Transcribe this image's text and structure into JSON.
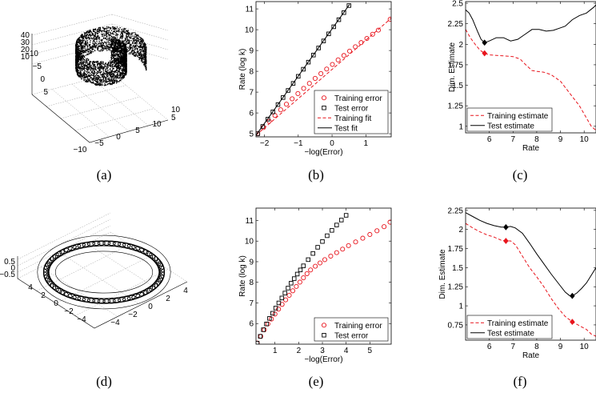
{
  "captions": [
    "(a)",
    "(b)",
    "(c)",
    "(d)",
    "(e)",
    "(f)"
  ],
  "chart_data": [
    {
      "id": "a",
      "type": "scatter",
      "kind": "3d-swiss-roll",
      "z_ticks": [
        "40",
        "30",
        "20",
        "10"
      ],
      "y_ticks": [
        "-10",
        "-5",
        "0",
        "5"
      ],
      "x_ticks": [
        "-10",
        "-5",
        "0",
        "5",
        "10"
      ],
      "right_ticks": [
        "10",
        "5"
      ],
      "point_color": "#000000"
    },
    {
      "id": "b",
      "type": "scatter",
      "xlabel": "−log(Error)",
      "ylabel": "Rate (log k)",
      "xlim": [
        -2.25,
        1.75
      ],
      "ylim": [
        4.85,
        11.35
      ],
      "xticks": [
        -2,
        -1,
        0,
        1
      ],
      "yticks": [
        5,
        6,
        7,
        8,
        9,
        10,
        11
      ],
      "legend": "bottom-right",
      "series": [
        {
          "name": "Training error",
          "marker": "circle",
          "color": "#e8141c",
          "x": [
            -2.2,
            -2.03,
            -1.86,
            -1.69,
            -1.52,
            -1.35,
            -1.18,
            -1.01,
            -0.84,
            -0.67,
            -0.5,
            -0.33,
            -0.16,
            0.01,
            0.18,
            0.35,
            0.52,
            0.69,
            0.86,
            1.03,
            1.2,
            1.37,
            1.72
          ],
          "y": [
            5.0,
            5.3,
            5.6,
            5.88,
            6.15,
            6.42,
            6.68,
            6.93,
            7.18,
            7.42,
            7.66,
            7.89,
            8.11,
            8.33,
            8.55,
            8.76,
            8.97,
            9.18,
            9.38,
            9.58,
            9.78,
            9.98,
            10.5
          ]
        },
        {
          "name": "Test error",
          "marker": "square",
          "color": "#000000",
          "x": [
            -2.2,
            -2.05,
            -1.9,
            -1.75,
            -1.6,
            -1.45,
            -1.3,
            -1.15,
            -1.0,
            -0.85,
            -0.7,
            -0.55,
            -0.4,
            -0.25,
            -0.1,
            0.05,
            0.2,
            0.35,
            0.5
          ],
          "y": [
            5.0,
            5.35,
            5.7,
            6.05,
            6.4,
            6.74,
            7.08,
            7.42,
            7.76,
            8.1,
            8.44,
            8.78,
            9.12,
            9.46,
            9.8,
            10.14,
            10.48,
            10.82,
            11.16
          ]
        },
        {
          "name": "Training fit",
          "line": "dashed",
          "color": "#e8141c",
          "x": [
            -2.25,
            1.75
          ],
          "y": [
            4.93,
            10.55
          ]
        },
        {
          "name": "Test fit",
          "line": "solid",
          "color": "#000000",
          "x": [
            -2.25,
            0.52
          ],
          "y": [
            4.93,
            11.22
          ]
        }
      ]
    },
    {
      "id": "c",
      "type": "line",
      "xlabel": "Rate",
      "ylabel": "Dim. Estimate",
      "xlim": [
        5.0,
        10.5
      ],
      "ylim": [
        0.92,
        2.52
      ],
      "xticks": [
        6,
        7,
        8,
        9,
        10
      ],
      "yticks": [
        "1",
        "1.25",
        "1.5",
        "1.75",
        "2",
        "2.25",
        "2.5"
      ],
      "legend": "bottom-left",
      "series": [
        {
          "name": "Training estimate",
          "line": "dashed",
          "color": "#e8141c",
          "x": [
            5.0,
            5.2,
            5.4,
            5.6,
            5.8,
            6.0,
            6.5,
            7.0,
            7.3,
            7.5,
            7.8,
            8.0,
            8.3,
            8.6,
            9.0,
            9.4,
            9.8,
            10.1,
            10.3,
            10.5
          ],
          "y": [
            2.18,
            2.08,
            2.0,
            1.93,
            1.89,
            1.87,
            1.86,
            1.85,
            1.82,
            1.76,
            1.68,
            1.67,
            1.66,
            1.63,
            1.55,
            1.4,
            1.25,
            1.1,
            1.0,
            0.95
          ],
          "highlight": {
            "x": 5.8,
            "y": 1.89
          }
        },
        {
          "name": "Test estimate",
          "line": "solid",
          "color": "#000000",
          "x": [
            5.0,
            5.15,
            5.3,
            5.5,
            5.65,
            5.8,
            6.0,
            6.3,
            6.6,
            6.9,
            7.2,
            7.5,
            7.8,
            8.1,
            8.4,
            8.7,
            9.0,
            9.2,
            9.5,
            9.8,
            10.1,
            10.4,
            10.5
          ],
          "y": [
            2.42,
            2.38,
            2.3,
            2.16,
            2.06,
            2.02,
            2.04,
            2.08,
            2.08,
            2.04,
            2.06,
            2.12,
            2.18,
            2.18,
            2.16,
            2.17,
            2.2,
            2.22,
            2.3,
            2.35,
            2.38,
            2.45,
            2.48
          ],
          "highlight": {
            "x": 5.8,
            "y": 2.02
          }
        }
      ]
    },
    {
      "id": "d",
      "type": "scatter",
      "kind": "3d-torus",
      "z_ticks": [
        "0.5",
        "0",
        "−0.5"
      ],
      "left_ticks": [
        "4",
        "2",
        "0",
        "−2",
        "−4"
      ],
      "right_ticks": [
        "4",
        "2",
        "0",
        "−2",
        "−4"
      ],
      "point_color": "#000000"
    },
    {
      "id": "e",
      "type": "scatter",
      "xlabel": "−log(Error)",
      "ylabel": "Rate (log k)",
      "xlim": [
        0.2,
        5.9
      ],
      "ylim": [
        5.0,
        11.6
      ],
      "xticks": [
        1,
        2,
        3,
        4,
        5
      ],
      "yticks": [
        6,
        7,
        8,
        9,
        10,
        11
      ],
      "legend": "bottom-right",
      "series": [
        {
          "name": "Training error",
          "marker": "circle",
          "color": "#e8141c",
          "x": [
            0.25,
            0.4,
            0.55,
            0.7,
            0.85,
            1.0,
            1.15,
            1.3,
            1.45,
            1.6,
            1.75,
            1.9,
            2.05,
            2.2,
            2.35,
            2.5,
            2.7,
            2.9,
            3.1,
            3.35,
            3.6,
            3.85,
            4.1,
            4.4,
            4.7,
            5.0,
            5.3,
            5.6,
            5.85
          ],
          "y": [
            5.05,
            5.38,
            5.7,
            5.98,
            6.22,
            6.46,
            6.7,
            6.93,
            7.15,
            7.37,
            7.59,
            7.8,
            8.01,
            8.22,
            8.42,
            8.6,
            8.78,
            8.94,
            9.1,
            9.27,
            9.44,
            9.61,
            9.78,
            9.96,
            10.14,
            10.32,
            10.5,
            10.7,
            10.92
          ]
        },
        {
          "name": "Test error",
          "marker": "square",
          "color": "#000000",
          "x": [
            0.25,
            0.38,
            0.51,
            0.64,
            0.77,
            0.9,
            1.03,
            1.16,
            1.29,
            1.42,
            1.55,
            1.68,
            1.81,
            1.94,
            2.07,
            2.2,
            2.4,
            2.6,
            2.8,
            3.0,
            3.2,
            3.4,
            3.6,
            3.8,
            4.0
          ],
          "y": [
            5.05,
            5.38,
            5.7,
            5.98,
            6.25,
            6.5,
            6.75,
            7.0,
            7.24,
            7.48,
            7.72,
            7.96,
            8.18,
            8.4,
            8.6,
            8.8,
            9.1,
            9.4,
            9.7,
            9.98,
            10.26,
            10.52,
            10.78,
            11.02,
            11.25
          ]
        }
      ]
    },
    {
      "id": "f",
      "type": "line",
      "xlabel": "Rate",
      "ylabel": "Dim. Estimate",
      "xlim": [
        5.0,
        10.5
      ],
      "ylim": [
        0.55,
        2.28
      ],
      "xticks": [
        6,
        7,
        8,
        9,
        10
      ],
      "yticks": [
        "0.75",
        "1",
        "1.25",
        "1.5",
        "1.75",
        "2",
        "2.25"
      ],
      "legend": "bottom-left",
      "series": [
        {
          "name": "Training estimate",
          "line": "dashed",
          "color": "#e8141c",
          "x": [
            5.0,
            5.3,
            5.6,
            5.9,
            6.2,
            6.5,
            6.7,
            6.9,
            7.1,
            7.4,
            7.7,
            8.0,
            8.3,
            8.6,
            8.9,
            9.2,
            9.5,
            9.8,
            10.1,
            10.3,
            10.5
          ],
          "y": [
            2.08,
            2.02,
            1.97,
            1.93,
            1.9,
            1.86,
            1.85,
            1.85,
            1.8,
            1.65,
            1.5,
            1.38,
            1.25,
            1.1,
            0.97,
            0.86,
            0.79,
            0.74,
            0.69,
            0.63,
            0.6
          ],
          "highlight": {
            "x": 9.5,
            "y": 0.79
          },
          "highlight2": {
            "x": 6.7,
            "y": 1.85
          }
        },
        {
          "name": "Test estimate",
          "line": "solid",
          "color": "#000000",
          "x": [
            5.0,
            5.3,
            5.6,
            5.9,
            6.2,
            6.5,
            6.7,
            6.9,
            7.1,
            7.4,
            7.7,
            8.0,
            8.3,
            8.6,
            8.9,
            9.2,
            9.4,
            9.5,
            9.7,
            9.9,
            10.1,
            10.3,
            10.5
          ],
          "y": [
            2.22,
            2.17,
            2.12,
            2.08,
            2.05,
            2.03,
            2.03,
            2.04,
            2.02,
            1.95,
            1.82,
            1.68,
            1.55,
            1.42,
            1.3,
            1.18,
            1.13,
            1.13,
            1.17,
            1.23,
            1.3,
            1.4,
            1.5
          ],
          "highlight": {
            "x": 9.5,
            "y": 1.13
          },
          "highlight2": {
            "x": 6.7,
            "y": 2.03
          }
        }
      ]
    }
  ]
}
